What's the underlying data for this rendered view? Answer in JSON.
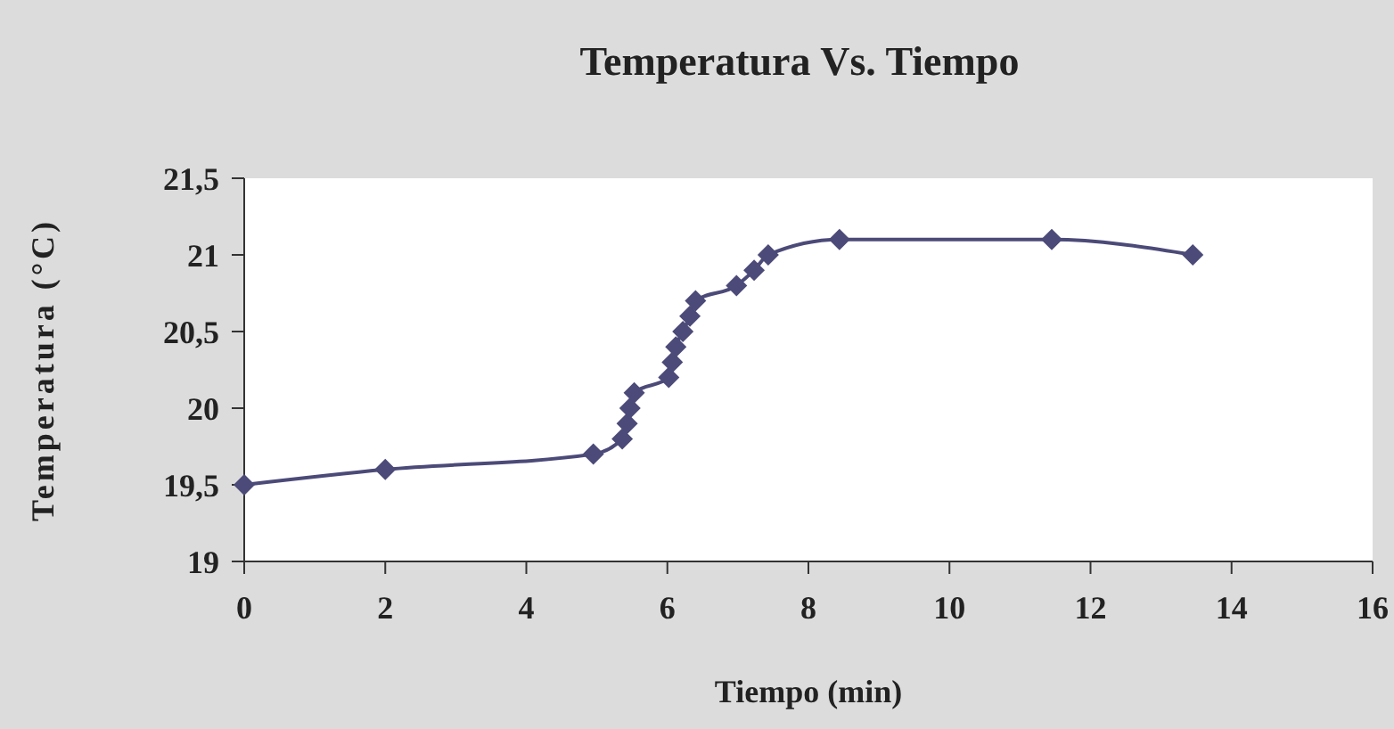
{
  "chart_data": {
    "type": "line",
    "title": "Temperatura Vs. Tiempo",
    "xlabel": "Tiempo (min)",
    "ylabel": "Temperatura (°C)",
    "x": [
      0,
      2,
      4.95,
      5.36,
      5.43,
      5.47,
      5.53,
      6.02,
      6.07,
      6.12,
      6.22,
      6.32,
      6.4,
      6.98,
      7.23,
      7.43,
      8.44,
      11.45,
      13.45
    ],
    "series": [
      {
        "color": "#4b4a78",
        "values": [
          19.5,
          19.6,
          19.7,
          19.8,
          19.9,
          20.0,
          20.1,
          20.2,
          20.3,
          20.4,
          20.5,
          20.6,
          20.7,
          20.8,
          20.9,
          21.0,
          21.1,
          21.1,
          21.0
        ]
      }
    ],
    "xlim": [
      0,
      16
    ],
    "xticks": [
      0,
      2,
      4,
      6,
      8,
      10,
      12,
      14,
      16
    ],
    "ylim": [
      19,
      21.5
    ],
    "yticks": [
      19,
      {
        "value": 19.5,
        "label": "19,5"
      },
      20,
      {
        "value": 20.5,
        "label": "20,5"
      },
      21,
      {
        "value": 21.5,
        "label": "21,5"
      }
    ],
    "grid": false,
    "marker": "diamond",
    "line_style": "solid"
  }
}
